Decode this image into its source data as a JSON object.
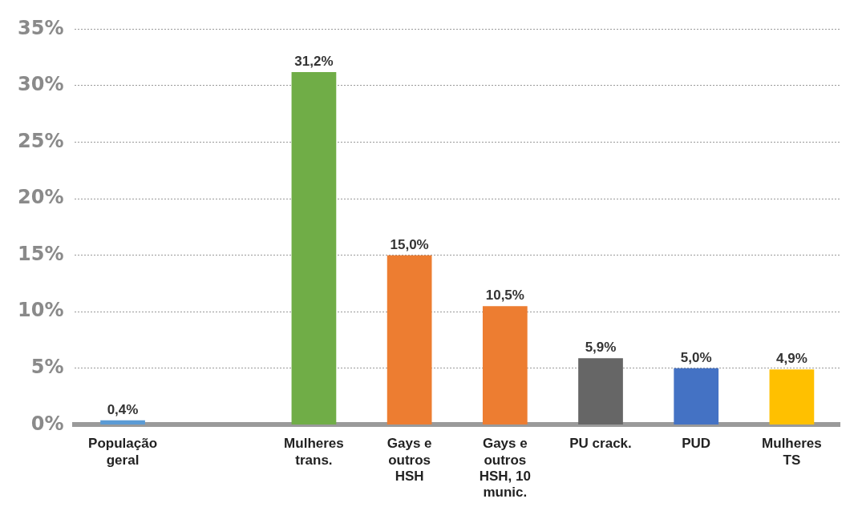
{
  "chart_data": {
    "type": "bar",
    "categories": [
      "População geral",
      null,
      "Mulheres trans.",
      "Gays e outros HSH",
      "Gays e outros HSH, 10 munic.",
      "PU crack.",
      "PUD",
      "Mulheres TS"
    ],
    "values": [
      0.4,
      null,
      31.2,
      15.0,
      10.5,
      5.9,
      5.0,
      4.9
    ],
    "colors": [
      "#5b9bd5",
      "#cccccc",
      "#70ad47",
      "#ed7d31",
      "#ed7d31",
      "#666666",
      "#4472c4",
      "#ffc000"
    ],
    "value_labels": [
      "0,4%",
      null,
      "31,2%",
      "15,0%",
      "10,5%",
      "5,9%",
      "5,0%",
      "4,9%"
    ],
    "ylim": [
      0,
      35
    ],
    "yticks": [
      {
        "value": 0,
        "label": "0%"
      },
      {
        "value": 5,
        "label": "5%"
      },
      {
        "value": 10,
        "label": "10%"
      },
      {
        "value": 15,
        "label": "15%"
      },
      {
        "value": 20,
        "label": "20%"
      },
      {
        "value": 25,
        "label": "25%"
      },
      {
        "value": 30,
        "label": "30%"
      },
      {
        "value": 35,
        "label": "35%"
      }
    ],
    "grid": "y",
    "legend": false
  }
}
